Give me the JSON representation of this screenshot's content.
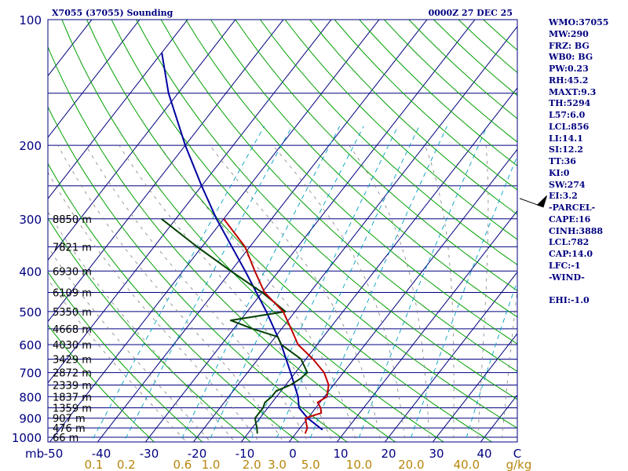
{
  "header": {
    "station": "X7055 (37055) Sounding",
    "time": "0000Z 27 DEC 25"
  },
  "indices": [
    "WMO:37055",
    "MW:290",
    "FRZ: BG",
    "WB0: BG",
    "PW:0.23",
    "RH:45.2",
    "MAXT:9.3",
    "TH:5294",
    "L57:6.0",
    "LCL:856",
    "LI:14.1",
    "SI:12.2",
    "TT:36",
    "KI:0",
    "SW:274",
    "EI:3.2",
    "-PARCEL-",
    "CAPE:16",
    "CINH:3888",
    "LCL:782",
    "CAP:14.0",
    "LFC:-1",
    "-WIND-",
    "",
    "EHI:-1.0"
  ],
  "colors": {
    "frame": "#000080",
    "isobar": "#000080",
    "isotherm": "#000080",
    "dry_adiabat": "#00a000",
    "moist_adiabat": "#808080",
    "mixing_ratio": "#00a0c0",
    "temperature": "#c00000",
    "dewpoint": "#004000",
    "parcel": "#0000a0",
    "barb": "#000000"
  },
  "chart_data": {
    "type": "skew-t",
    "title": "X7055 (37055) Sounding",
    "pressure_unit": "mb",
    "pressure_range": [
      1000,
      100
    ],
    "pressure_ticks": [
      100,
      200,
      300,
      400,
      500,
      600,
      700,
      800,
      900,
      1000
    ],
    "temperature_ticks": [
      -50,
      -40,
      -30,
      -20,
      -10,
      0,
      10,
      20,
      30,
      40
    ],
    "temperature_tick_labels": [
      "-50",
      "-40",
      "-30",
      "-20",
      "-10",
      "0",
      "10",
      "20",
      "30",
      "40",
      "C"
    ],
    "mixing_ratio_label_values": [
      0.1,
      0.2,
      0.6,
      1.0,
      2.0,
      3.0,
      5.0,
      10.0,
      20.0,
      40.0
    ],
    "mixing_ratio_labels": [
      "0.1",
      "0.2",
      "0.6",
      "1.0",
      "2.0",
      "3.0",
      "5.0",
      "10.0",
      "20.0",
      "40.0",
      "g/kg"
    ],
    "height_labels": [
      {
        "p": 300,
        "text": "8850 m"
      },
      {
        "p": 350,
        "text": "7821 m"
      },
      {
        "p": 400,
        "text": "6930 m"
      },
      {
        "p": 450,
        "text": "6109 m"
      },
      {
        "p": 500,
        "text": "5350 m"
      },
      {
        "p": 550,
        "text": "4668 m"
      },
      {
        "p": 600,
        "text": "4030 m"
      },
      {
        "p": 650,
        "text": "3429 m"
      },
      {
        "p": 700,
        "text": "2872 m"
      },
      {
        "p": 750,
        "text": "2339 m"
      },
      {
        "p": 800,
        "text": "1837 m"
      },
      {
        "p": 850,
        "text": "1359 m"
      },
      {
        "p": 900,
        "text": "907 m"
      },
      {
        "p": 950,
        "text": "476 m"
      },
      {
        "p": 1000,
        "text": "66 m"
      }
    ],
    "temperature_profile": [
      {
        "p": 980,
        "t": 2.0
      },
      {
        "p": 950,
        "t": 1.5
      },
      {
        "p": 925,
        "t": 0.5
      },
      {
        "p": 900,
        "t": -0.5
      },
      {
        "p": 875,
        "t": 2.0
      },
      {
        "p": 850,
        "t": 1.0
      },
      {
        "p": 825,
        "t": -0.5
      },
      {
        "p": 800,
        "t": 0.5
      },
      {
        "p": 750,
        "t": -1.0
      },
      {
        "p": 700,
        "t": -4.0
      },
      {
        "p": 650,
        "t": -8.5
      },
      {
        "p": 600,
        "t": -14.0
      },
      {
        "p": 550,
        "t": -18.0
      },
      {
        "p": 500,
        "t": -22.5
      },
      {
        "p": 450,
        "t": -29.5
      },
      {
        "p": 400,
        "t": -35.0
      },
      {
        "p": 350,
        "t": -41.0
      },
      {
        "p": 300,
        "t": -50.0
      }
    ],
    "dewpoint_profile": [
      {
        "p": 980,
        "t": -8.0
      },
      {
        "p": 950,
        "t": -9.0
      },
      {
        "p": 925,
        "t": -10.0
      },
      {
        "p": 900,
        "t": -11.0
      },
      {
        "p": 875,
        "t": -11.0
      },
      {
        "p": 850,
        "t": -11.0
      },
      {
        "p": 825,
        "t": -11.5
      },
      {
        "p": 800,
        "t": -11.0
      },
      {
        "p": 775,
        "t": -11.0
      },
      {
        "p": 750,
        "t": -9.0
      },
      {
        "p": 725,
        "t": -8.0
      },
      {
        "p": 700,
        "t": -7.5
      },
      {
        "p": 650,
        "t": -11.0
      },
      {
        "p": 600,
        "t": -17.5
      },
      {
        "p": 575,
        "t": -19.5
      },
      {
        "p": 550,
        "t": -26.0
      },
      {
        "p": 525,
        "t": -32.0
      },
      {
        "p": 500,
        "t": -22.0
      },
      {
        "p": 450,
        "t": -30.0
      },
      {
        "p": 400,
        "t": -40.0
      },
      {
        "p": 350,
        "t": -51.0
      },
      {
        "p": 300,
        "t": -63.0
      }
    ],
    "parcel_profile": [
      {
        "p": 960,
        "t": 5.0
      },
      {
        "p": 900,
        "t": 0.0
      },
      {
        "p": 850,
        "t": -3.5
      },
      {
        "p": 800,
        "t": -5.5
      },
      {
        "p": 700,
        "t": -11.0
      },
      {
        "p": 600,
        "t": -17.5
      },
      {
        "p": 500,
        "t": -26.0
      },
      {
        "p": 400,
        "t": -37.0
      },
      {
        "p": 300,
        "t": -51.5
      },
      {
        "p": 250,
        "t": -60.0
      },
      {
        "p": 200,
        "t": -70.0
      },
      {
        "p": 150,
        "t": -82.0
      },
      {
        "p": 120,
        "t": -90.0
      }
    ],
    "wind_barbs": [
      {
        "p": 268,
        "direction_deg": 290,
        "speed_kt": 50
      }
    ]
  }
}
